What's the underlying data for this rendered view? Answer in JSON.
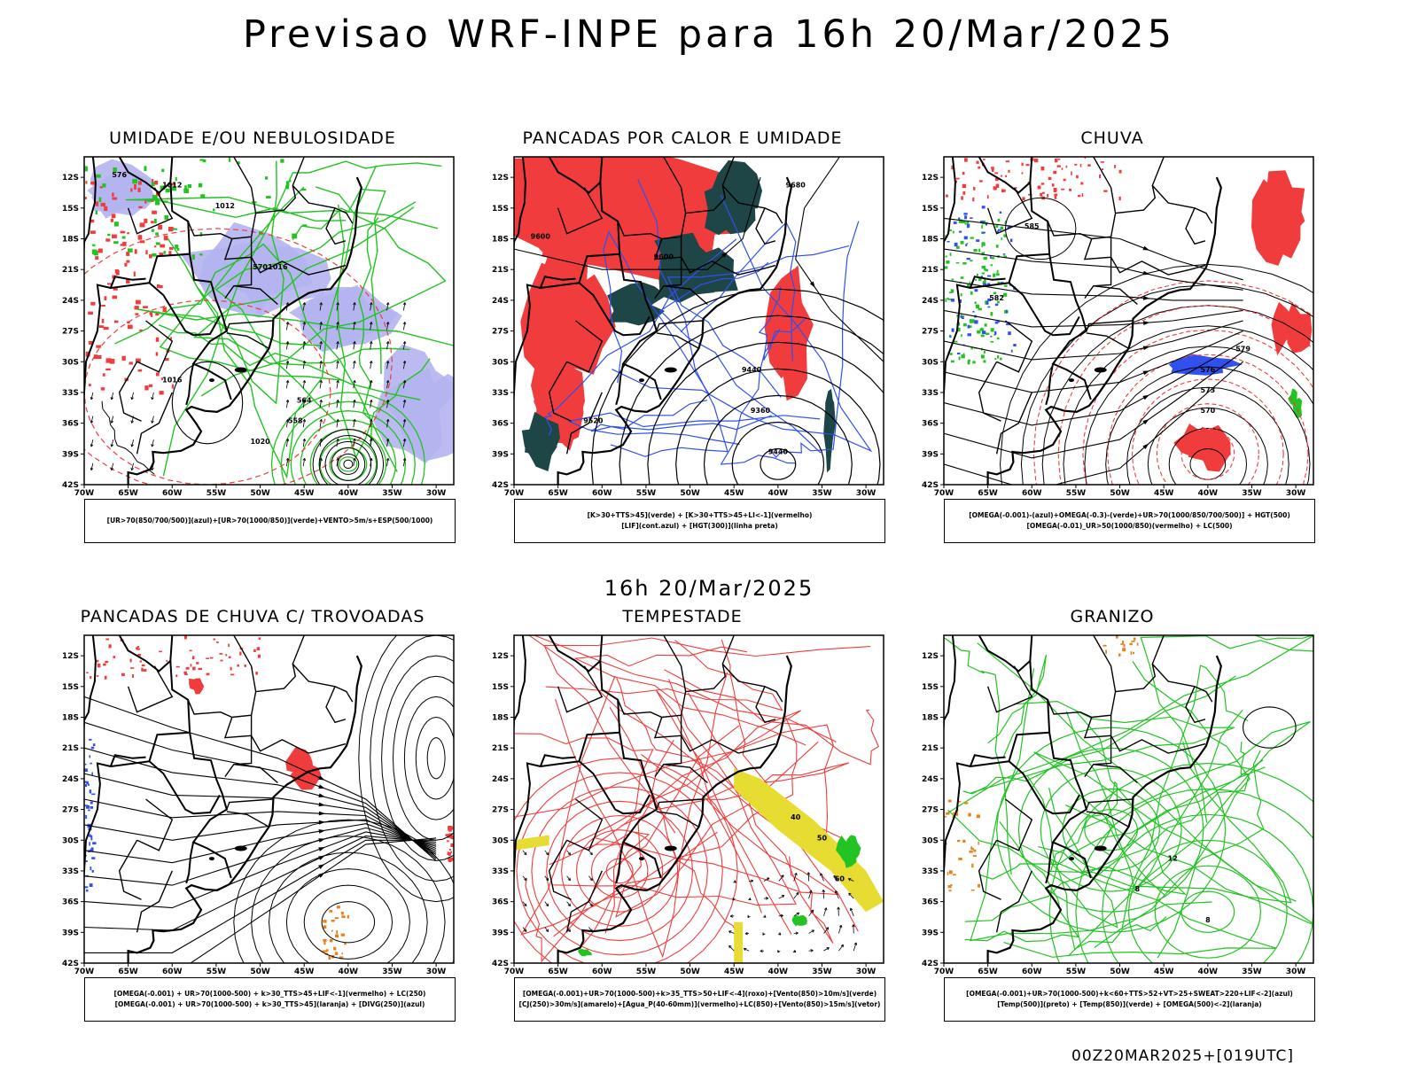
{
  "page": {
    "title": "Previsao WRF-INPE  para 16h 20/Mar/2025",
    "subtitle": "16h 20/Mar/2025",
    "footer": "00Z20MAR2025+[019UTC]"
  },
  "axes": {
    "lat_labels": [
      "12S",
      "15S",
      "18S",
      "21S",
      "24S",
      "27S",
      "30S",
      "33S",
      "36S",
      "39S",
      "42S"
    ],
    "lon_labels": [
      "70W",
      "65W",
      "60W",
      "55W",
      "50W",
      "45W",
      "40W",
      "35W",
      "30W"
    ]
  },
  "colors": {
    "red": "#f03c3c",
    "green": "#22c322",
    "blue": "#3050f0",
    "lavender": "#b4b4f0",
    "darkteal": "#1e4646",
    "yellow": "#e6dc32",
    "orange": "#e6821e"
  },
  "panels": [
    {
      "title": "UMIDADE E/OU NEBULOSIDADE",
      "legend": [
        "[UR>70(850/700/500)](azul)+[UR>70(1000/850)](verde)+VENTO>5m/s+ESP(500/1000)"
      ],
      "contour_labels": [
        "1012",
        "1012",
        "1016",
        "1016",
        "1020",
        "576",
        "570",
        "564",
        "558"
      ]
    },
    {
      "title": "PANCADAS POR CALOR E UMIDADE",
      "legend": [
        "[K>30+TTS>45](verde) + [K>30+TTS>45+LI<-1](vermelho)",
        "[LIF](cont.azul) + [HGT(300)](linha preta)"
      ],
      "contour_labels": [
        "9680",
        "9600",
        "9600",
        "9520",
        "9440",
        "9360",
        "9440"
      ]
    },
    {
      "title": "CHUVA",
      "legend": [
        "[OMEGA(-0.001)-(azul)+OMEGA(-0.3)-(verde)+UR>70(1000/850/700/500)] + HGT(500)",
        "[OMEGA(-0.01)_UR>50(1000/850)(vermelho) + LC(500)"
      ],
      "contour_labels": [
        "585",
        "582",
        "579",
        "576",
        "573",
        "570"
      ]
    },
    {
      "title": "PANCADAS DE CHUVA C/ TROVOADAS",
      "legend": [
        "[OMEGA(-0.001) + UR>70(1000-500) + k>30_TTS>45+LIF<-1](vermelho) + LC(250)",
        "[OMEGA(-0.001) + UR>70(1000-500) + k>30_TTS>45](laranja) + [DIVG(250)](azul)"
      ],
      "contour_labels": []
    },
    {
      "title": "TEMPESTADE",
      "legend": [
        "[OMEGA(-0.001)+UR>70(1000-500)+k>35_TTS>50+LIF<-4](roxo)+[Vento(850)>10m/s](verde)",
        "[CJ(250)>30m/s](amarelo)+[Agua_P(40-60mm)](vermelho)+LC(850)+[Vento(850)>15m/s](vetor)"
      ],
      "contour_labels": [
        "40",
        "50",
        "60"
      ]
    },
    {
      "title": "GRANIZO",
      "legend": [
        "[OMEGA(-0.001)+UR>70(1000-500)+k<60+TTS>52+VT>25+SWEAT>220+LIF<-2](azul)",
        "[Temp(500)](preto) + [Temp(850)](verde) + [OMEGA(500)<-2](laranja)"
      ],
      "contour_labels": [
        "12",
        "8",
        "8"
      ]
    }
  ]
}
